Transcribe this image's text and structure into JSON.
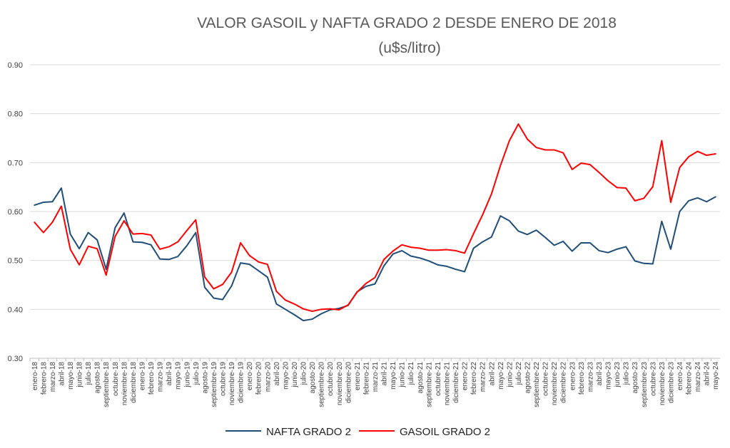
{
  "chart_data": {
    "type": "line",
    "title": "VALOR GASOIL y NAFTA GRADO 2 DESDE ENERO DE 2018",
    "subtitle": "(u$s/litro)",
    "xlabel": "",
    "ylabel": "",
    "ylim": [
      0.3,
      0.9
    ],
    "yticks": [
      "0.30",
      "0.40",
      "0.50",
      "0.60",
      "0.70",
      "0.80",
      "0.90"
    ],
    "grid": true,
    "legend": "bottom",
    "categories": [
      "enero-18",
      "febrero-18",
      "marzo-18",
      "abril-18",
      "mayo-18",
      "junio-18",
      "julio-18",
      "agosto-18",
      "septiembre-18",
      "octubre-18",
      "noviembre-18",
      "diciembre-18",
      "enero-19",
      "febrero-19",
      "marzo-19",
      "abril-19",
      "mayo-19",
      "junio-19",
      "julio-19",
      "agosto-19",
      "septiembre-19",
      "octubre-19",
      "noviembre-19",
      "diciembre-19",
      "enero-20",
      "febrero-20",
      "marzo-20",
      "abril-20",
      "mayo-20",
      "junio-20",
      "julio-20",
      "agosto-20",
      "septiembre-20",
      "octubre-20",
      "noviembre-20",
      "diciembre-20",
      "enero-21",
      "febrero-21",
      "marzo-21",
      "abril-21",
      "mayo-21",
      "junio-21",
      "julio-21",
      "agosto-21",
      "septiembre-21",
      "octubre-21",
      "noviembre-21",
      "diciembre-21",
      "enero-22",
      "febrero-22",
      "marzo-22",
      "abril-22",
      "mayo-22",
      "junio-22",
      "julio-22",
      "agosto-22",
      "septiembre-22",
      "octubre-22",
      "noviembre-22",
      "diciembre-22",
      "enero-23",
      "febrero-23",
      "marzo-23",
      "abril-23",
      "mayo-23",
      "junio-23",
      "julio-23",
      "agosto-23",
      "septiembre-23",
      "octubre-23",
      "noviembre-23",
      "diciembre-23",
      "enero-24",
      "febrero-24",
      "marzo-24",
      "abril-24",
      "mayo-24"
    ],
    "series": [
      {
        "name": "NAFTA GRADO 2",
        "color": "#1f4e79",
        "values": [
          0.613,
          0.619,
          0.62,
          0.648,
          0.554,
          0.524,
          0.557,
          0.542,
          0.482,
          0.567,
          0.597,
          0.538,
          0.537,
          0.532,
          0.503,
          0.502,
          0.508,
          0.53,
          0.557,
          0.445,
          0.423,
          0.42,
          0.448,
          0.495,
          0.492,
          0.479,
          0.466,
          0.411,
          0.4,
          0.389,
          0.377,
          0.38,
          0.391,
          0.399,
          0.402,
          0.408,
          0.436,
          0.447,
          0.452,
          0.489,
          0.513,
          0.52,
          0.509,
          0.505,
          0.499,
          0.491,
          0.488,
          0.482,
          0.477,
          0.525,
          0.538,
          0.548,
          0.591,
          0.581,
          0.56,
          0.553,
          0.562,
          0.547,
          0.531,
          0.539,
          0.519,
          0.536,
          0.536,
          0.52,
          0.516,
          0.523,
          0.528,
          0.499,
          0.494,
          0.493,
          0.58,
          0.523,
          0.6,
          0.622,
          0.628,
          0.62,
          0.63
        ]
      },
      {
        "name": "GASOIL GRADO 2",
        "color": "#ff0000",
        "values": [
          0.578,
          0.557,
          0.578,
          0.611,
          0.523,
          0.491,
          0.529,
          0.524,
          0.47,
          0.549,
          0.581,
          0.554,
          0.555,
          0.552,
          0.523,
          0.528,
          0.538,
          0.561,
          0.583,
          0.466,
          0.442,
          0.451,
          0.476,
          0.536,
          0.51,
          0.497,
          0.492,
          0.437,
          0.419,
          0.411,
          0.401,
          0.396,
          0.4,
          0.401,
          0.399,
          0.409,
          0.435,
          0.453,
          0.465,
          0.502,
          0.519,
          0.532,
          0.527,
          0.525,
          0.521,
          0.521,
          0.522,
          0.52,
          0.515,
          0.555,
          0.593,
          0.636,
          0.694,
          0.745,
          0.779,
          0.748,
          0.731,
          0.726,
          0.726,
          0.72,
          0.686,
          0.699,
          0.696,
          0.68,
          0.663,
          0.649,
          0.648,
          0.622,
          0.627,
          0.651,
          0.745,
          0.619,
          0.69,
          0.712,
          0.723,
          0.715,
          0.718
        ]
      }
    ]
  }
}
